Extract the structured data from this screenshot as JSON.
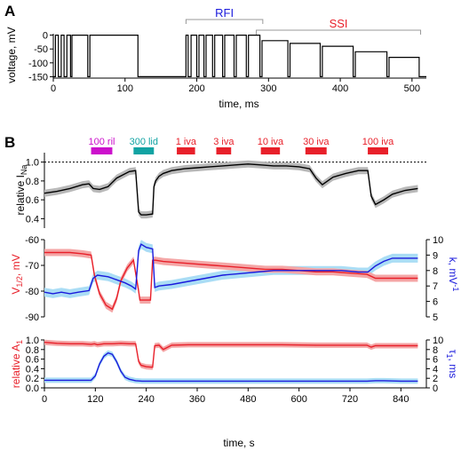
{
  "panel_labels": [
    "A",
    "B"
  ],
  "colors": {
    "black": "#000000",
    "red": "#e8202a",
    "blue": "#1a1adc",
    "magenta": "#cc11cc",
    "teal": "#11a3a3",
    "gray_band": "#b8b8b8",
    "red_band": "#f4a6a6",
    "blue_band": "#aaddf5",
    "bracket": "#999999"
  },
  "chart_data": [
    {
      "id": "panel-A",
      "type": "line",
      "xlabel": "time, ms",
      "ylabel": "voltage, mV",
      "xlim": [
        0,
        520
      ],
      "ylim": [
        -155,
        5
      ],
      "xticks": [
        0,
        100,
        200,
        300,
        400,
        500
      ],
      "yticks": [
        0,
        -50,
        -100,
        -150
      ],
      "brackets": [
        {
          "label": "RFI",
          "x_start": 185,
          "x_end": 292,
          "color": "blue"
        },
        {
          "label": "SSI",
          "x_start": 283,
          "x_end": 512,
          "color": "red"
        }
      ],
      "series": [
        {
          "x": [
            0,
            3,
            3,
            7,
            7,
            11,
            11,
            15,
            15,
            19,
            19,
            24,
            24,
            26,
            26,
            48,
            48,
            51,
            51,
            118,
            118,
            122,
            122,
            185,
            185,
            188,
            188,
            192,
            192,
            200,
            200,
            203,
            203,
            210,
            210,
            213,
            213,
            222,
            222,
            225,
            225,
            236,
            236,
            239,
            239,
            252,
            252,
            255,
            255,
            269,
            269,
            272,
            272,
            288,
            288,
            291,
            291,
            327,
            327,
            330,
            330,
            372,
            372,
            375,
            375,
            418,
            418,
            421,
            421,
            465,
            465,
            468,
            468,
            510,
            510,
            513,
            513,
            520
          ],
          "y": [
            -150,
            -150,
            0,
            0,
            -150,
            -150,
            0,
            0,
            -150,
            -150,
            0,
            0,
            -150,
            -150,
            0,
            0,
            -150,
            -150,
            0,
            0,
            -150,
            -150,
            -150,
            -150,
            0,
            0,
            -150,
            -150,
            0,
            0,
            -150,
            -150,
            0,
            0,
            -150,
            -150,
            0,
            0,
            -150,
            -150,
            0,
            0,
            -150,
            -150,
            0,
            0,
            -150,
            -150,
            0,
            0,
            -150,
            -150,
            0,
            0,
            -150,
            -150,
            -20,
            -20,
            -150,
            -150,
            -30,
            -30,
            -150,
            -150,
            -40,
            -40,
            -150,
            -150,
            -60,
            -60,
            -150,
            -150,
            -80,
            -80,
            -150,
            -150,
            -150,
            -150
          ]
        }
      ]
    },
    {
      "id": "panel-B1",
      "type": "line",
      "ylabel": "relative I",
      "ylabel_sub": "Na",
      "xlim": [
        0,
        900
      ],
      "ylim": [
        0.3,
        1.1
      ],
      "yticks": [
        "1.0",
        "0.8",
        "0.6",
        "0.4"
      ],
      "reference_line": 1.0,
      "drug_bars": [
        {
          "label": "100 ril",
          "x_start": 110,
          "x_end": 160,
          "color": "magenta"
        },
        {
          "label": "300 lid",
          "x_start": 210,
          "x_end": 258,
          "color": "teal"
        },
        {
          "label": "1 iva",
          "x_start": 312,
          "x_end": 355,
          "color": "red"
        },
        {
          "label": "3 iva",
          "x_start": 405,
          "x_end": 440,
          "color": "red"
        },
        {
          "label": "10 iva",
          "x_start": 510,
          "x_end": 555,
          "color": "red"
        },
        {
          "label": "30 iva",
          "x_start": 615,
          "x_end": 665,
          "color": "red"
        },
        {
          "label": "100 iva",
          "x_start": 762,
          "x_end": 810,
          "color": "red"
        }
      ],
      "series": [
        {
          "name": "relative INa",
          "color": "black",
          "x": [
            0,
            30,
            60,
            90,
            105,
            115,
            130,
            150,
            170,
            200,
            215,
            222,
            228,
            240,
            255,
            258,
            262,
            270,
            280,
            300,
            330,
            360,
            390,
            420,
            450,
            480,
            510,
            540,
            570,
            600,
            625,
            640,
            655,
            680,
            710,
            740,
            762,
            770,
            780,
            800,
            820,
            850,
            880
          ],
          "y": [
            0.67,
            0.69,
            0.72,
            0.76,
            0.77,
            0.72,
            0.71,
            0.74,
            0.83,
            0.9,
            0.91,
            0.47,
            0.44,
            0.44,
            0.45,
            0.74,
            0.8,
            0.85,
            0.88,
            0.91,
            0.93,
            0.94,
            0.95,
            0.96,
            0.97,
            0.98,
            0.97,
            0.96,
            0.96,
            0.95,
            0.93,
            0.83,
            0.76,
            0.84,
            0.88,
            0.91,
            0.91,
            0.64,
            0.55,
            0.6,
            0.66,
            0.7,
            0.72
          ]
        }
      ]
    },
    {
      "id": "panel-B2",
      "type": "line",
      "ylabel_left": "V1/2, mV",
      "ylabel_right": "k, mV-1",
      "xlim": [
        0,
        900
      ],
      "ylim_left": [
        -90,
        -60
      ],
      "ylim_right": [
        5,
        10
      ],
      "yticks_left": [
        -60,
        -70,
        -80,
        -90
      ],
      "yticks_right": [
        10,
        9,
        8,
        7,
        6,
        5
      ],
      "series": [
        {
          "name": "V1/2",
          "color": "red",
          "axis": "left",
          "x": [
            0,
            30,
            60,
            90,
            110,
            118,
            130,
            145,
            160,
            170,
            180,
            195,
            210,
            222,
            225,
            235,
            250,
            255,
            262,
            280,
            320,
            360,
            400,
            440,
            480,
            520,
            560,
            600,
            640,
            680,
            720,
            760,
            780,
            800,
            840,
            880
          ],
          "y": [
            -65,
            -65,
            -65,
            -65.5,
            -66,
            -74,
            -81,
            -85.5,
            -87,
            -83,
            -76,
            -71,
            -68,
            -80,
            -83.5,
            -83.5,
            -83.5,
            -68,
            -68,
            -68.5,
            -69,
            -69.5,
            -70,
            -70.5,
            -71,
            -71.5,
            -71.5,
            -72,
            -72.5,
            -72.5,
            -73,
            -73.5,
            -75,
            -75,
            -75,
            -75
          ]
        },
        {
          "name": "k",
          "color": "blue",
          "axis": "right",
          "x": [
            0,
            20,
            40,
            60,
            80,
            105,
            115,
            125,
            150,
            170,
            190,
            205,
            215,
            222,
            228,
            240,
            255,
            260,
            270,
            300,
            340,
            380,
            420,
            460,
            500,
            540,
            580,
            620,
            660,
            700,
            740,
            762,
            780,
            800,
            820,
            840,
            860,
            880
          ],
          "y": [
            6.6,
            6.5,
            6.6,
            6.5,
            6.6,
            6.7,
            7.5,
            7.7,
            7.6,
            7.4,
            7.2,
            7.0,
            6.8,
            9.3,
            9.7,
            9.5,
            9.4,
            6.9,
            7.0,
            7.1,
            7.3,
            7.5,
            7.7,
            7.8,
            7.9,
            8.0,
            8.0,
            8.0,
            8.0,
            8.0,
            7.9,
            7.9,
            8.3,
            8.6,
            8.8,
            8.8,
            8.8,
            8.8
          ]
        }
      ]
    },
    {
      "id": "panel-B3",
      "type": "line",
      "ylabel_left": "relative A1",
      "ylabel_right": "τ1, ms",
      "xlabel": "time, s",
      "xlim": [
        0,
        900
      ],
      "ylim_left": [
        0,
        1.0
      ],
      "ylim_right": [
        0,
        10
      ],
      "xticks": [
        0,
        120,
        240,
        360,
        480,
        600,
        720,
        840
      ],
      "yticks_left": [
        "0.0",
        "0.2",
        "0.4",
        "0.6",
        "0.8",
        "1.0"
      ],
      "yticks_right": [
        0,
        2,
        4,
        6,
        8,
        10
      ],
      "series": [
        {
          "name": "relative A1",
          "color": "red",
          "axis": "left",
          "x": [
            0,
            30,
            60,
            90,
            110,
            118,
            125,
            140,
            160,
            180,
            200,
            215,
            222,
            228,
            240,
            255,
            260,
            270,
            280,
            300,
            340,
            400,
            480,
            560,
            640,
            720,
            760,
            770,
            780,
            800,
            840,
            880
          ],
          "y": [
            0.95,
            0.93,
            0.92,
            0.92,
            0.91,
            0.92,
            0.9,
            0.92,
            0.92,
            0.93,
            0.92,
            0.92,
            0.55,
            0.47,
            0.44,
            0.43,
            0.88,
            0.89,
            0.8,
            0.89,
            0.9,
            0.9,
            0.9,
            0.9,
            0.89,
            0.89,
            0.89,
            0.85,
            0.88,
            0.88,
            0.88,
            0.88
          ]
        },
        {
          "name": "τ1",
          "color": "blue",
          "axis": "right",
          "x": [
            0,
            40,
            80,
            110,
            120,
            130,
            140,
            150,
            160,
            170,
            180,
            190,
            200,
            215,
            230,
            260,
            300,
            400,
            500,
            600,
            700,
            760,
            780,
            800,
            840,
            880
          ],
          "y": [
            1.6,
            1.6,
            1.6,
            1.6,
            2.5,
            5.0,
            6.6,
            7.3,
            7.0,
            5.5,
            3.5,
            2.2,
            1.8,
            1.5,
            1.4,
            1.4,
            1.4,
            1.4,
            1.4,
            1.4,
            1.4,
            1.4,
            1.5,
            1.5,
            1.4,
            1.4
          ]
        }
      ]
    }
  ]
}
